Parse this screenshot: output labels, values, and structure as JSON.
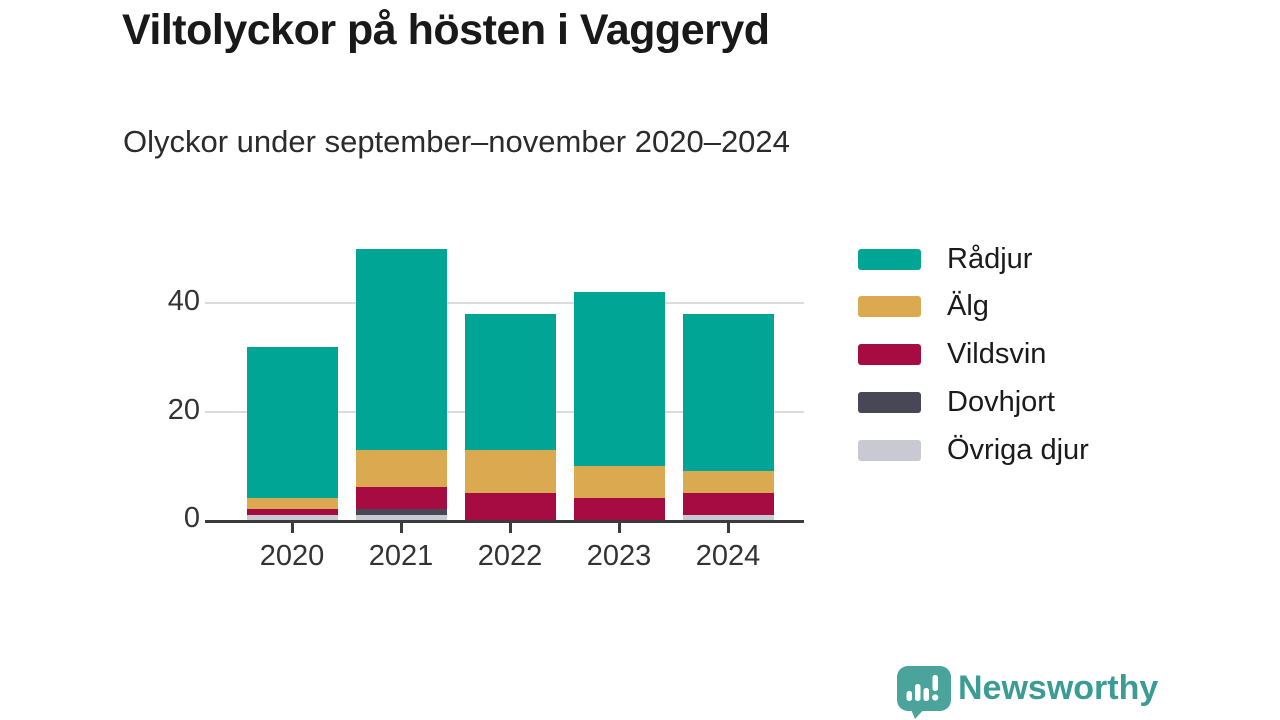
{
  "header": {
    "title": "Viltolyckor på hösten i Vaggeryd",
    "subtitle": "Olyckor under september–november 2020–2024"
  },
  "chart_data": {
    "type": "bar",
    "stacked": true,
    "title": "Viltolyckor på hösten i Vaggeryd",
    "subtitle": "Olyckor under september–november 2020–2024",
    "categories": [
      "2020",
      "2021",
      "2022",
      "2023",
      "2024"
    ],
    "series": [
      {
        "name": "Rådjur",
        "color": "#00A596",
        "values": [
          28,
          37,
          25,
          32,
          29
        ]
      },
      {
        "name": "Älg",
        "color": "#DAA950",
        "values": [
          2,
          7,
          8,
          6,
          4
        ]
      },
      {
        "name": "Vildsvin",
        "color": "#A60C42",
        "values": [
          1,
          4,
          5,
          4,
          4
        ]
      },
      {
        "name": "Dovhjort",
        "color": "#474756",
        "values": [
          0,
          1,
          0,
          0,
          0
        ]
      },
      {
        "name": "Övriga djur",
        "color": "#C8C9D2",
        "values": [
          1,
          1,
          0,
          0,
          1
        ]
      }
    ],
    "stack_order_bottom_to_top": [
      "Övriga djur",
      "Dovhjort",
      "Vildsvin",
      "Älg",
      "Rådjur"
    ],
    "totals": [
      32,
      50,
      38,
      42,
      38
    ],
    "xlabel": "",
    "ylabel": "",
    "yticks": [
      0,
      20,
      40
    ],
    "ylim": [
      0,
      52
    ],
    "grid": true,
    "legend_position": "right"
  },
  "footer": {
    "brand": "Newsworthy",
    "brand_icon": "newsworthy-speech-bubble-chart-icon",
    "brand_color": "#3A9C94"
  }
}
